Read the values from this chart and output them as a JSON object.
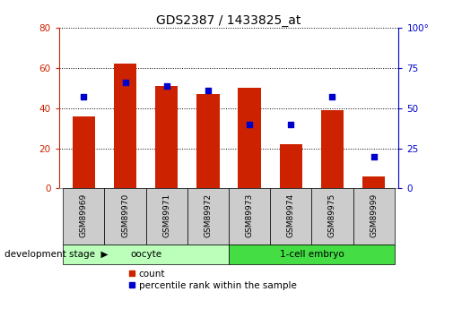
{
  "title": "GDS2387 / 1433825_at",
  "samples": [
    "GSM89969",
    "GSM89970",
    "GSM89971",
    "GSM89972",
    "GSM89973",
    "GSM89974",
    "GSM89975",
    "GSM89999"
  ],
  "counts": [
    36,
    62,
    51,
    47,
    50,
    22,
    39,
    6
  ],
  "percentiles": [
    57,
    66,
    64,
    61,
    40,
    40,
    57,
    20
  ],
  "bar_color": "#cc2200",
  "dot_color": "#0000cc",
  "groups": [
    {
      "label": "oocyte",
      "color": "#bbffbb",
      "n": 4
    },
    {
      "label": "1-cell embryo",
      "color": "#44dd44",
      "n": 4
    }
  ],
  "left_ylim": [
    0,
    80
  ],
  "right_ylim": [
    0,
    100
  ],
  "left_yticks": [
    0,
    20,
    40,
    60,
    80
  ],
  "right_yticks": [
    0,
    25,
    50,
    75,
    100
  ],
  "right_yticklabels": [
    "0",
    "25",
    "50",
    "75",
    "100°"
  ],
  "left_tick_color": "#cc2200",
  "right_tick_color": "#0000cc",
  "grid_color": "#000000",
  "bg_color": "#ffffff",
  "tick_area_color": "#cccccc",
  "legend_count_label": "count",
  "legend_pct_label": "percentile rank within the sample",
  "dev_stage_label": "development stage",
  "bar_width": 0.55,
  "title_fontsize": 10
}
